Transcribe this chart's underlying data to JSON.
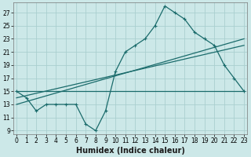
{
  "xlabel": "Humidex (Indice chaleur)",
  "bg_color": "#cce8e8",
  "grid_color": "#aacfcf",
  "line_color": "#1a6b6b",
  "x_main": [
    0,
    1,
    2,
    3,
    4,
    5,
    6,
    7,
    8,
    9,
    10,
    11,
    12,
    13,
    14,
    15,
    16,
    17,
    18,
    19,
    20,
    21,
    22,
    23
  ],
  "y_main": [
    15,
    14,
    12,
    13,
    13,
    13,
    13,
    10,
    9,
    12,
    18,
    21,
    22,
    23,
    25,
    28,
    27,
    26,
    24,
    23,
    22,
    19,
    17,
    15
  ],
  "x_line1_start": 0,
  "y_line1_start": 15,
  "x_line1_end": 23,
  "y_line1_end": 15,
  "x_line2_start": 0,
  "y_line2_start": 14,
  "x_line2_end": 23,
  "y_line2_end": 22,
  "x_line3_start": 0,
  "y_line3_start": 13,
  "x_line3_end": 23,
  "y_line3_end": 23,
  "xlim": [
    -0.3,
    23.3
  ],
  "ylim": [
    8.5,
    28.5
  ],
  "yticks": [
    9,
    11,
    13,
    15,
    17,
    19,
    21,
    23,
    25,
    27
  ],
  "xticks": [
    0,
    1,
    2,
    3,
    4,
    5,
    6,
    7,
    8,
    9,
    10,
    11,
    12,
    13,
    14,
    15,
    16,
    17,
    18,
    19,
    20,
    21,
    22,
    23
  ],
  "tick_fontsize": 5.5,
  "xlabel_fontsize": 7,
  "marker_size": 3,
  "linewidth": 0.9
}
